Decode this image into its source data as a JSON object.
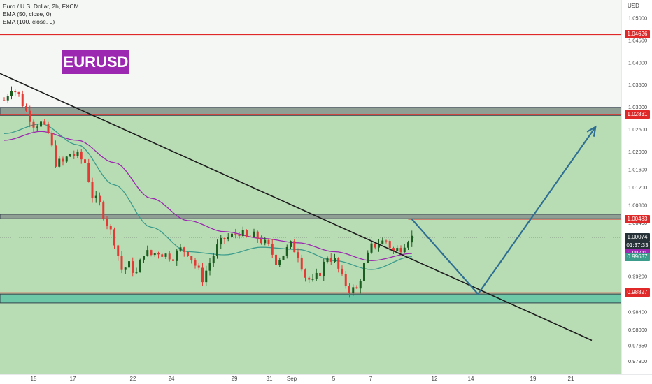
{
  "legend": {
    "symbol": "Euro / U.S. Dollar, 2h, FXCM",
    "ema50": "EMA (50, close, 0)",
    "ema100": "EMA (100, close, 0)"
  },
  "badge": {
    "text": "EURUSD",
    "color": "#9c27b0"
  },
  "currency": "USD",
  "colors": {
    "bg_green": "#b8dcb4",
    "bg_plain": "#f4f7f4",
    "zone_gray": "#8f9f93",
    "support_zone": "#6cc8a6",
    "red_line": "#e02828",
    "up_candle": "#1b5e20",
    "down_candle": "#e53935",
    "ema50": "#3c9c8c",
    "ema100": "#9c27b0",
    "trendline": "#1c1c1c",
    "arrow": "#2f6f92",
    "price_tag_dark": "#263238"
  },
  "price_tags": [
    {
      "value": "1.04626",
      "color": "#e02828"
    },
    {
      "value": "1.02831",
      "color": "#e02828"
    },
    {
      "value": "1.00483",
      "color": "#e02828"
    },
    {
      "value": "1.00074",
      "color": "#263238"
    },
    {
      "value": "01:37:33",
      "color": "#263238"
    },
    {
      "value": "0.99711",
      "color": "#9c27b0"
    },
    {
      "value": "0.99637",
      "color": "#3c9c8c"
    },
    {
      "value": "0.98827",
      "color": "#e02828"
    }
  ],
  "chart_data": {
    "type": "candlestick",
    "title": "Euro / U.S. Dollar, 2h, FXCM",
    "ylabel": "USD",
    "ylim": [
      0.97,
      1.054
    ],
    "y_ticks": [
      "1.05000",
      "1.04500",
      "1.04000",
      "1.03500",
      "1.03000",
      "1.02500",
      "1.02000",
      "1.01600",
      "1.01200",
      "1.00800",
      "1.00400",
      "0.99600",
      "0.99200",
      "0.98800",
      "0.98400",
      "0.98000",
      "0.97650",
      "0.97300"
    ],
    "x_ticks": [
      "15",
      "17",
      "22",
      "24",
      "29",
      "31",
      "Sep",
      "5",
      "7",
      "12",
      "14",
      "19",
      "21"
    ],
    "levels": [
      1.04626,
      1.02831,
      1.00483,
      0.98827
    ],
    "zones": [
      {
        "name": "resistance-zone",
        "from": 1.0281,
        "to": 1.0299
      },
      {
        "name": "mid-zone",
        "from": 1.0049,
        "to": 1.0059
      },
      {
        "name": "support-zone",
        "from": 0.986,
        "to": 0.988
      }
    ],
    "last_price": 1.00074,
    "countdown": "01:37:33",
    "ema50_last": 0.99637,
    "ema100_last": 0.99711,
    "close_path": [
      [
        0,
        1.0315
      ],
      [
        2,
        1.0345
      ],
      [
        4,
        1.0325
      ],
      [
        6,
        1.029
      ],
      [
        8,
        1.0262
      ],
      [
        10,
        1.0263
      ],
      [
        12,
        1.024
      ],
      [
        14,
        1.0175
      ],
      [
        16,
        1.0175
      ],
      [
        18,
        1.0195
      ],
      [
        20,
        1.019
      ],
      [
        22,
        1.0175
      ],
      [
        24,
        1.01
      ],
      [
        26,
        1.008
      ],
      [
        28,
        1.004
      ],
      [
        30,
        1.0
      ],
      [
        32,
        0.9935
      ],
      [
        34,
        0.9945
      ],
      [
        36,
        0.9925
      ],
      [
        38,
        0.9975
      ],
      [
        40,
        0.9968
      ],
      [
        42,
        0.9975
      ],
      [
        44,
        0.9968
      ],
      [
        46,
        0.9965
      ],
      [
        48,
        0.998
      ],
      [
        50,
        0.9975
      ],
      [
        52,
        0.9945
      ],
      [
        54,
        0.9915
      ],
      [
        56,
        0.995
      ],
      [
        58,
        0.9985
      ],
      [
        60,
        1.0005
      ],
      [
        62,
        1.001
      ],
      [
        64,
        1.002
      ],
      [
        66,
        1.0005
      ],
      [
        68,
        1.001
      ],
      [
        70,
        1.0
      ],
      [
        72,
        0.9985
      ],
      [
        74,
        0.9955
      ],
      [
        76,
        0.997
      ],
      [
        78,
        0.999
      ],
      [
        80,
        0.997
      ],
      [
        82,
        0.992
      ],
      [
        84,
        0.9905
      ],
      [
        86,
        0.993
      ],
      [
        88,
        0.9965
      ],
      [
        90,
        0.9955
      ],
      [
        92,
        0.9915
      ],
      [
        94,
        0.989
      ],
      [
        96,
        0.989
      ],
      [
        98,
        0.9945
      ],
      [
        100,
        0.9985
      ],
      [
        102,
        0.9995
      ],
      [
        104,
        1.0
      ],
      [
        106,
        0.9975
      ],
      [
        108,
        0.9985
      ],
      [
        110,
        1.0005
      ],
      [
        111,
        1.0007
      ]
    ],
    "ema50": [
      [
        0,
        1.024
      ],
      [
        10,
        1.0262
      ],
      [
        20,
        1.0215
      ],
      [
        30,
        1.0125
      ],
      [
        40,
        1.003
      ],
      [
        50,
        0.9975
      ],
      [
        60,
        0.9968
      ],
      [
        70,
        0.9985
      ],
      [
        80,
        0.998
      ],
      [
        90,
        0.9955
      ],
      [
        100,
        0.9935
      ],
      [
        111,
        0.9964
      ]
    ],
    "ema100": [
      [
        0,
        1.0225
      ],
      [
        10,
        1.0245
      ],
      [
        20,
        1.0225
      ],
      [
        30,
        1.0175
      ],
      [
        40,
        1.0095
      ],
      [
        50,
        1.0045
      ],
      [
        60,
        1.002
      ],
      [
        70,
        1.0005
      ],
      [
        80,
        0.9995
      ],
      [
        90,
        0.9975
      ],
      [
        100,
        0.9955
      ],
      [
        111,
        0.9971
      ]
    ],
    "trendline": [
      [
        0,
        1.0375
      ],
      [
        160,
        0.9776
      ]
    ],
    "projection": [
      [
        111,
        1.0048
      ],
      [
        129,
        0.988
      ],
      [
        161,
        1.0255
      ]
    ]
  }
}
